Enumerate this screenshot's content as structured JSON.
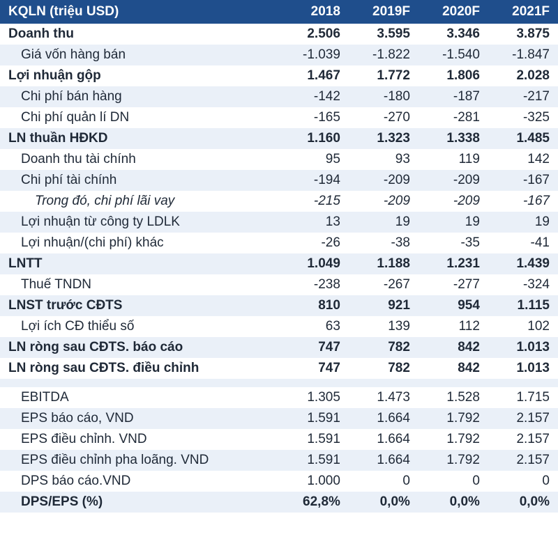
{
  "table": {
    "type": "table",
    "header_bg": "#1f4e8c",
    "header_color": "#ffffff",
    "row_alt_bg": "#eaf0f8",
    "text_color": "#1f2937",
    "font_family": "Arial",
    "font_size": 19,
    "columns": [
      "KQLN (triệu USD)",
      "2018",
      "2019F",
      "2020F",
      "2021F"
    ],
    "rows": [
      {
        "label": "Doanh thu",
        "values": [
          "2.506",
          "3.595",
          "3.346",
          "3.875"
        ],
        "bold": true,
        "shade": false,
        "indent": 0
      },
      {
        "label": "Giá vốn hàng bán",
        "values": [
          "-1.039",
          "-1.822",
          "-1.540",
          "-1.847"
        ],
        "bold": false,
        "shade": true,
        "indent": 1
      },
      {
        "label": "Lợi nhuận gộp",
        "values": [
          "1.467",
          "1.772",
          "1.806",
          "2.028"
        ],
        "bold": true,
        "shade": false,
        "indent": 0
      },
      {
        "label": "Chi phí bán hàng",
        "values": [
          "-142",
          "-180",
          "-187",
          "-217"
        ],
        "bold": false,
        "shade": true,
        "indent": 1
      },
      {
        "label": "Chi phí quản lí DN",
        "values": [
          "-165",
          "-270",
          "-281",
          "-325"
        ],
        "bold": false,
        "shade": false,
        "indent": 1
      },
      {
        "label": "LN thuần HĐKD",
        "values": [
          "1.160",
          "1.323",
          "1.338",
          "1.485"
        ],
        "bold": true,
        "shade": true,
        "indent": 0
      },
      {
        "label": "Doanh thu tài chính",
        "values": [
          "95",
          "93",
          "119",
          "142"
        ],
        "bold": false,
        "shade": false,
        "indent": 1
      },
      {
        "label": "Chi phí tài chính",
        "values": [
          "-194",
          "-209",
          "-209",
          "-167"
        ],
        "bold": false,
        "shade": true,
        "indent": 1
      },
      {
        "label": "Trong đó, chi phí lãi vay",
        "values": [
          "-215",
          "-209",
          "-209",
          "-167"
        ],
        "bold": false,
        "shade": false,
        "indent": 2,
        "italic": true
      },
      {
        "label": "Lợi nhuận từ công ty LDLK",
        "values": [
          "13",
          "19",
          "19",
          "19"
        ],
        "bold": false,
        "shade": true,
        "indent": 1
      },
      {
        "label": "Lợi nhuận/(chi phí) khác",
        "values": [
          "-26",
          "-38",
          "-35",
          "-41"
        ],
        "bold": false,
        "shade": false,
        "indent": 1
      },
      {
        "label": "LNTT",
        "values": [
          "1.049",
          "1.188",
          "1.231",
          "1.439"
        ],
        "bold": true,
        "shade": true,
        "indent": 0
      },
      {
        "label": "Thuế TNDN",
        "values": [
          "-238",
          "-267",
          "-277",
          "-324"
        ],
        "bold": false,
        "shade": false,
        "indent": 1
      },
      {
        "label": "LNST trước CĐTS",
        "values": [
          "810",
          "921",
          "954",
          "1.115"
        ],
        "bold": true,
        "shade": true,
        "indent": 0
      },
      {
        "label": "Lợi ích CĐ thiểu số",
        "values": [
          "63",
          "139",
          "112",
          "102"
        ],
        "bold": false,
        "shade": false,
        "indent": 1
      },
      {
        "label": "LN ròng sau CĐTS. báo cáo",
        "values": [
          "747",
          "782",
          "842",
          "1.013"
        ],
        "bold": true,
        "shade": true,
        "indent": 0
      },
      {
        "label": "LN ròng sau CĐTS. điều chỉnh",
        "values": [
          "747",
          "782",
          "842",
          "1.013"
        ],
        "bold": true,
        "shade": false,
        "indent": 0
      },
      {
        "blank": true,
        "shade": true
      },
      {
        "label": "EBITDA",
        "values": [
          "1.305",
          "1.473",
          "1.528",
          "1.715"
        ],
        "bold": false,
        "shade": false,
        "indent": 1
      },
      {
        "label": "EPS báo cáo, VND",
        "values": [
          "1.591",
          "1.664",
          "1.792",
          "2.157"
        ],
        "bold": false,
        "shade": true,
        "indent": 1
      },
      {
        "label": "EPS điều chỉnh. VND",
        "values": [
          "1.591",
          "1.664",
          "1.792",
          "2.157"
        ],
        "bold": false,
        "shade": false,
        "indent": 1
      },
      {
        "label": "EPS điều chỉnh pha loãng. VND",
        "values": [
          "1.591",
          "1.664",
          "1.792",
          "2.157"
        ],
        "bold": false,
        "shade": true,
        "indent": 1
      },
      {
        "label": "DPS báo cáo.VND",
        "values": [
          "1.000",
          "0",
          "0",
          "0"
        ],
        "bold": false,
        "shade": false,
        "indent": 1
      },
      {
        "label": "DPS/EPS (%)",
        "values": [
          "62,8%",
          "0,0%",
          "0,0%",
          "0,0%"
        ],
        "bold": true,
        "shade": true,
        "indent": 1
      }
    ]
  }
}
